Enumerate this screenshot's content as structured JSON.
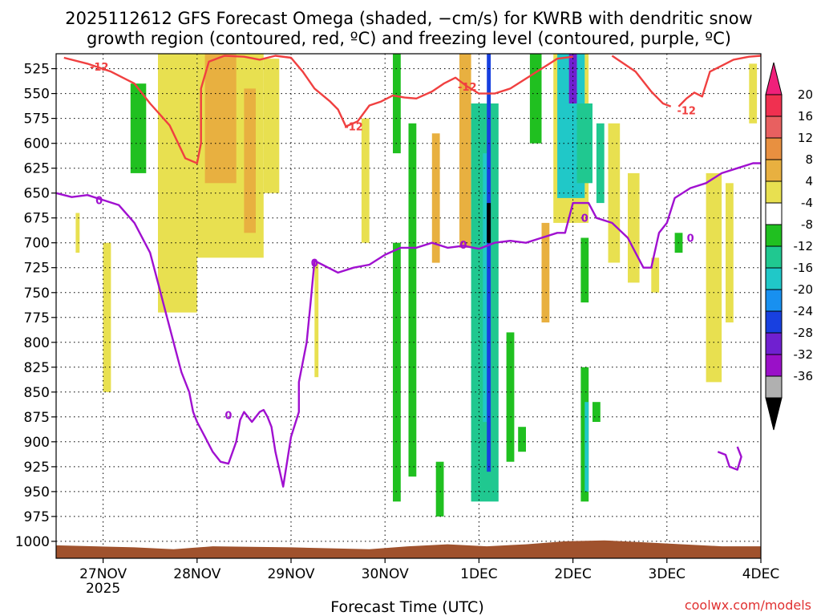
{
  "title_line1": "2025112612 GFS Forecast Omega (shaded, −cm/s) for KWRB with dendritic snow",
  "title_line2": "growth region (contoured, red, ºC) and freezing level (contoured, purple, ºC)",
  "credit": "coolwx.com/models",
  "colors": {
    "snow_contour": "#f04040",
    "freezing_contour": "#a010d0",
    "terrain": "#a0522d",
    "credit": "#e03030"
  },
  "chart_data": {
    "type": "heatmap",
    "xlabel": "Forecast Time (UTC)",
    "ylabel": "",
    "x_ticks": [
      {
        "label": "27NOV",
        "sub": "2025",
        "t": 12
      },
      {
        "label": "28NOV",
        "sub": "",
        "t": 36
      },
      {
        "label": "29NOV",
        "sub": "",
        "t": 60
      },
      {
        "label": "30NOV",
        "sub": "",
        "t": 84
      },
      {
        "label": "1DEC",
        "sub": "",
        "t": 108
      },
      {
        "label": "2DEC",
        "sub": "",
        "t": 132
      },
      {
        "label": "3DEC",
        "sub": "",
        "t": 156
      },
      {
        "label": "4DEC",
        "sub": "",
        "t": 180
      }
    ],
    "xlim_hours": [
      0,
      180
    ],
    "y_ticks": [
      525,
      550,
      575,
      600,
      625,
      650,
      675,
      700,
      725,
      750,
      775,
      800,
      825,
      850,
      875,
      900,
      925,
      950,
      975,
      1000
    ],
    "ylim_hpa": [
      510,
      1017
    ],
    "grid": true,
    "colorbar": {
      "labels": [
        "20",
        "16",
        "12",
        "8",
        "4",
        "-4",
        "-8",
        "-12",
        "-16",
        "-20",
        "-24",
        "-28",
        "-32",
        "-36"
      ],
      "colors": [
        "#f03050",
        "#e86060",
        "#e89040",
        "#e8b040",
        "#e8e050",
        "#ffffff",
        "#20c020",
        "#20c890",
        "#20c8c8",
        "#1890f0",
        "#1840e0",
        "#7020d0",
        "#9a10c8",
        "#b0b0b0"
      ],
      "top_arrow": "#f0207a",
      "bottom_arrow": "#000000"
    },
    "omega_regions": [
      {
        "t0": 26,
        "t1": 36,
        "p0": 510,
        "p1": 770,
        "v": 5
      },
      {
        "t0": 36,
        "t1": 53,
        "p0": 510,
        "p1": 715,
        "v": 5
      },
      {
        "t0": 38,
        "t1": 46,
        "p0": 510,
        "p1": 640,
        "v": 9
      },
      {
        "t0": 48,
        "t1": 51,
        "p0": 545,
        "p1": 690,
        "v": 9
      },
      {
        "t0": 53,
        "t1": 57,
        "p0": 515,
        "p1": 650,
        "v": 5
      },
      {
        "t0": 19,
        "t1": 23,
        "p0": 540,
        "p1": 630,
        "v": -6
      },
      {
        "t0": 12,
        "t1": 14,
        "p0": 700,
        "p1": 850,
        "v": 5
      },
      {
        "t0": 5,
        "t1": 6,
        "p0": 670,
        "p1": 710,
        "v": 5
      },
      {
        "t0": 66,
        "t1": 67,
        "p0": 720,
        "p1": 835,
        "v": 5
      },
      {
        "t0": 78,
        "t1": 80,
        "p0": 575,
        "p1": 700,
        "v": 5
      },
      {
        "t0": 86,
        "t1": 88,
        "p0": 510,
        "p1": 610,
        "v": -6
      },
      {
        "t0": 86,
        "t1": 88,
        "p0": 700,
        "p1": 960,
        "v": -6
      },
      {
        "t0": 90,
        "t1": 92,
        "p0": 580,
        "p1": 935,
        "v": -6
      },
      {
        "t0": 96,
        "t1": 98,
        "p0": 590,
        "p1": 720,
        "v": 9
      },
      {
        "t0": 97,
        "t1": 99,
        "p0": 920,
        "p1": 975,
        "v": -6
      },
      {
        "t0": 103,
        "t1": 106,
        "p0": 510,
        "p1": 705,
        "v": 9
      },
      {
        "t0": 106,
        "t1": 113,
        "p0": 560,
        "p1": 960,
        "v": -9
      },
      {
        "t0": 109,
        "t1": 111,
        "p0": 610,
        "p1": 880,
        "v": -14
      },
      {
        "t0": 110,
        "t1": 111,
        "p0": 510,
        "p1": 930,
        "v": -22
      },
      {
        "t0": 110,
        "t1": 111,
        "p0": 660,
        "p1": 700,
        "v": -36
      },
      {
        "t0": 115,
        "t1": 117,
        "p0": 790,
        "p1": 920,
        "v": -6
      },
      {
        "t0": 118,
        "t1": 120,
        "p0": 885,
        "p1": 910,
        "v": -6
      },
      {
        "t0": 121,
        "t1": 124,
        "p0": 510,
        "p1": 600,
        "v": -6
      },
      {
        "t0": 124,
        "t1": 126,
        "p0": 680,
        "p1": 780,
        "v": 9
      },
      {
        "t0": 127,
        "t1": 136,
        "p0": 510,
        "p1": 680,
        "v": 5
      },
      {
        "t0": 128,
        "t1": 135,
        "p0": 510,
        "p1": 655,
        "v": -14
      },
      {
        "t0": 131,
        "t1": 133,
        "p0": 510,
        "p1": 560,
        "v": -26
      },
      {
        "t0": 133,
        "t1": 137,
        "p0": 560,
        "p1": 640,
        "v": -10
      },
      {
        "t0": 134,
        "t1": 136,
        "p0": 695,
        "p1": 760,
        "v": -6
      },
      {
        "t0": 134,
        "t1": 136,
        "p0": 825,
        "p1": 960,
        "v": -6
      },
      {
        "t0": 135,
        "t1": 136,
        "p0": 860,
        "p1": 950,
        "v": -14
      },
      {
        "t0": 138,
        "t1": 140,
        "p0": 580,
        "p1": 660,
        "v": -10
      },
      {
        "t0": 137,
        "t1": 139,
        "p0": 860,
        "p1": 880,
        "v": -6
      },
      {
        "t0": 141,
        "t1": 144,
        "p0": 580,
        "p1": 720,
        "v": 5
      },
      {
        "t0": 146,
        "t1": 149,
        "p0": 630,
        "p1": 740,
        "v": 5
      },
      {
        "t0": 152,
        "t1": 154,
        "p0": 715,
        "p1": 750,
        "v": 5
      },
      {
        "t0": 158,
        "t1": 160,
        "p0": 690,
        "p1": 710,
        "v": -6
      },
      {
        "t0": 166,
        "t1": 170,
        "p0": 630,
        "p1": 840,
        "v": 5
      },
      {
        "t0": 171,
        "t1": 173,
        "p0": 640,
        "p1": 780,
        "v": 5
      },
      {
        "t0": 177,
        "t1": 179,
        "p0": 520,
        "p1": 580,
        "v": 5
      }
    ],
    "snow_growth_contour": {
      "label": "-12",
      "segments": [
        [
          [
            2,
            514
          ],
          [
            8,
            520
          ],
          [
            14,
            528
          ],
          [
            20,
            540
          ],
          [
            24,
            560
          ],
          [
            29,
            582
          ],
          [
            33,
            615
          ],
          [
            36,
            620
          ],
          [
            37,
            600
          ],
          [
            37,
            545
          ],
          [
            39,
            518
          ],
          [
            43,
            512
          ],
          [
            48,
            513
          ],
          [
            52,
            516
          ],
          [
            56,
            512
          ],
          [
            60,
            514
          ],
          [
            63,
            528
          ],
          [
            66,
            545
          ],
          [
            70,
            558
          ],
          [
            72,
            566
          ],
          [
            74,
            583
          ],
          [
            77,
            578
          ],
          [
            80,
            562
          ],
          [
            83,
            558
          ],
          [
            86,
            552
          ],
          [
            89,
            554
          ],
          [
            92,
            555
          ],
          [
            96,
            548
          ],
          [
            99,
            540
          ],
          [
            102,
            534
          ],
          [
            105,
            543
          ],
          [
            108,
            550
          ],
          [
            112,
            550
          ],
          [
            116,
            545
          ],
          [
            120,
            535
          ],
          [
            124,
            525
          ],
          [
            128,
            515
          ],
          [
            132,
            513
          ]
        ],
        [
          [
            142,
            512
          ],
          [
            148,
            528
          ],
          [
            152,
            548
          ],
          [
            155,
            560
          ],
          [
            157,
            563
          ]
        ],
        [
          [
            159,
            563
          ],
          [
            161,
            555
          ],
          [
            163,
            549
          ],
          [
            165,
            553
          ],
          [
            167,
            528
          ],
          [
            170,
            522
          ],
          [
            173,
            516
          ],
          [
            177,
            513
          ],
          [
            180,
            512
          ]
        ]
      ],
      "labels": [
        {
          "t": 11,
          "p": 523
        },
        {
          "t": 76,
          "p": 583
        },
        {
          "t": 105,
          "p": 543
        },
        {
          "t": 161,
          "p": 567
        }
      ]
    },
    "freezing_level_contour": {
      "label": "0",
      "segments": [
        [
          [
            0,
            650
          ],
          [
            4,
            654
          ],
          [
            8,
            652
          ],
          [
            12,
            657
          ],
          [
            16,
            662
          ],
          [
            20,
            680
          ],
          [
            24,
            710
          ],
          [
            26,
            740
          ],
          [
            28,
            770
          ],
          [
            30,
            800
          ],
          [
            32,
            830
          ],
          [
            34,
            850
          ],
          [
            35,
            870
          ],
          [
            36,
            880
          ],
          [
            38,
            895
          ],
          [
            40,
            910
          ],
          [
            42,
            920
          ],
          [
            44,
            922
          ],
          [
            46,
            900
          ],
          [
            47,
            878
          ],
          [
            48,
            870
          ],
          [
            49,
            875
          ],
          [
            50,
            880
          ],
          [
            52,
            870
          ],
          [
            53,
            868
          ],
          [
            54,
            875
          ],
          [
            55,
            885
          ],
          [
            56,
            910
          ],
          [
            58,
            945
          ],
          [
            60,
            895
          ],
          [
            62,
            870
          ],
          [
            62,
            840
          ],
          [
            64,
            800
          ],
          [
            65,
            760
          ],
          [
            66,
            718
          ],
          [
            68,
            722
          ],
          [
            72,
            730
          ],
          [
            76,
            725
          ],
          [
            80,
            722
          ],
          [
            84,
            712
          ],
          [
            88,
            705
          ],
          [
            92,
            705
          ],
          [
            96,
            700
          ],
          [
            100,
            705
          ],
          [
            104,
            703
          ],
          [
            108,
            706
          ],
          [
            112,
            700
          ],
          [
            116,
            698
          ],
          [
            120,
            700
          ],
          [
            124,
            695
          ],
          [
            128,
            690
          ],
          [
            130,
            690
          ],
          [
            132,
            660
          ],
          [
            136,
            660
          ],
          [
            138,
            675
          ],
          [
            142,
            680
          ],
          [
            146,
            695
          ],
          [
            148,
            710
          ],
          [
            150,
            725
          ],
          [
            152,
            725
          ],
          [
            154,
            690
          ],
          [
            156,
            680
          ],
          [
            158,
            655
          ],
          [
            162,
            645
          ],
          [
            166,
            640
          ],
          [
            170,
            630
          ],
          [
            174,
            625
          ],
          [
            178,
            620
          ],
          [
            180,
            620
          ]
        ],
        [
          [
            169,
            910
          ],
          [
            171,
            913
          ],
          [
            172,
            925
          ],
          [
            174,
            928
          ],
          [
            175,
            915
          ],
          [
            174,
            905
          ]
        ]
      ],
      "labels": [
        {
          "t": 11,
          "p": 657
        },
        {
          "t": 44,
          "p": 873
        },
        {
          "t": 66,
          "p": 720
        },
        {
          "t": 104,
          "p": 702
        },
        {
          "t": 135,
          "p": 675
        },
        {
          "t": 162,
          "p": 695
        }
      ]
    },
    "terrain": [
      [
        0,
        1004
      ],
      [
        20,
        1006
      ],
      [
        30,
        1008
      ],
      [
        40,
        1005
      ],
      [
        60,
        1006
      ],
      [
        80,
        1008
      ],
      [
        90,
        1005
      ],
      [
        100,
        1003
      ],
      [
        110,
        1005
      ],
      [
        120,
        1003
      ],
      [
        130,
        1000
      ],
      [
        140,
        999
      ],
      [
        150,
        1001
      ],
      [
        160,
        1003
      ],
      [
        170,
        1005
      ],
      [
        180,
        1005
      ]
    ]
  }
}
